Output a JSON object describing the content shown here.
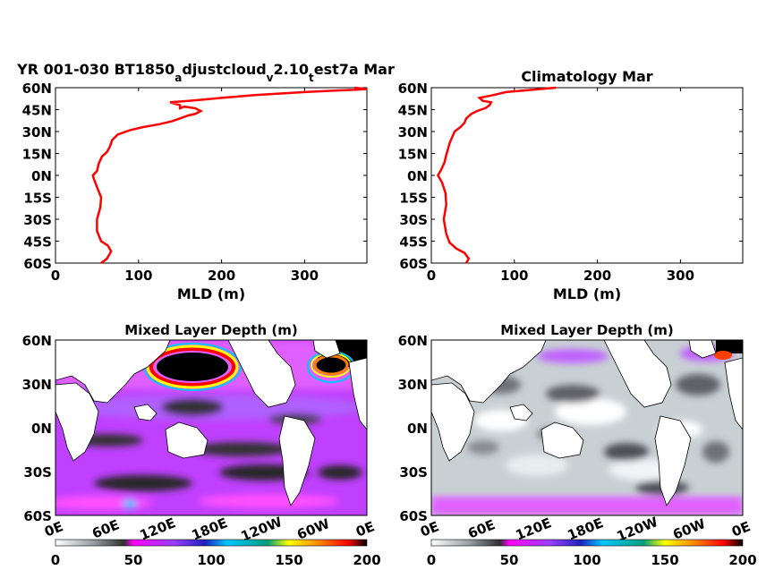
{
  "chart_data": [
    {
      "type": "line",
      "title": "YR 001-030 BT1850",
      "title_parts": [
        "YR 001-030 BT1850",
        "a",
        "djustcloud",
        "v",
        "2.10",
        "t",
        "est7a Mar"
      ],
      "xlabel": "MLD (m)",
      "ylabel": "",
      "xlim": [
        0,
        375
      ],
      "ylim": [
        -60,
        60
      ],
      "xticks": [
        "0",
        "100",
        "200",
        "300"
      ],
      "yticks": [
        "60S",
        "45S",
        "30S",
        "15S",
        "0N",
        "15N",
        "30N",
        "45N",
        "60N"
      ],
      "grid": false,
      "series": [
        {
          "color": "#ff0000",
          "x": [
            55,
            62,
            67,
            63,
            55,
            50,
            50,
            54,
            55,
            50,
            46,
            45,
            50,
            52,
            56,
            62,
            65,
            67,
            68,
            75,
            90,
            105,
            125,
            140,
            150,
            160,
            168,
            175,
            168,
            155,
            150,
            150,
            138,
            160,
            180,
            200,
            240,
            300,
            375,
            360
          ],
          "y": [
            -60,
            -57,
            -52,
            -48,
            -45,
            -38,
            -30,
            -22,
            -15,
            -8,
            -2,
            0,
            3,
            8,
            13,
            16,
            19,
            22,
            24,
            28,
            31,
            33,
            35,
            37,
            39,
            41,
            42,
            44,
            46,
            47,
            46,
            48,
            50,
            51,
            52,
            53,
            55,
            57,
            59,
            60
          ]
        }
      ]
    },
    {
      "type": "line",
      "title": "Climatology Mar",
      "xlabel": "MLD (m)",
      "ylabel": "",
      "xlim": [
        0,
        375
      ],
      "ylim": [
        -60,
        60
      ],
      "xticks": [
        "0",
        "100",
        "200",
        "300"
      ],
      "yticks": [
        "60S",
        "45S",
        "30S",
        "15S",
        "0N",
        "15N",
        "30N",
        "45N",
        "60N"
      ],
      "grid": false,
      "series": [
        {
          "color": "#ff0000",
          "x": [
            42,
            45,
            40,
            30,
            22,
            18,
            15,
            18,
            17,
            13,
            9,
            8,
            12,
            16,
            18,
            20,
            22,
            25,
            28,
            35,
            40,
            42,
            48,
            55,
            65,
            70,
            72,
            62,
            58,
            75,
            90,
            110,
            150
          ],
          "y": [
            -60,
            -57,
            -53,
            -50,
            -46,
            -40,
            -30,
            -20,
            -12,
            -5,
            -1,
            0,
            4,
            9,
            14,
            18,
            22,
            26,
            30,
            33,
            36,
            39,
            42,
            44,
            46,
            48,
            50,
            51,
            53,
            55,
            57,
            58,
            60
          ]
        }
      ]
    },
    {
      "type": "heatmap",
      "title": "Mixed Layer Depth (m)",
      "yticks": [
        "60N",
        "30N",
        "0N",
        "30S",
        "60S"
      ],
      "xticks": [
        "0E",
        "60E",
        "120E",
        "180E",
        "120W",
        "60W",
        "0E"
      ],
      "colorbar_ticks": [
        "0",
        "50",
        "100",
        "150",
        "200"
      ],
      "colorbar_range": [
        0,
        200
      ]
    },
    {
      "type": "heatmap",
      "title": "Mixed Layer Depth (m)",
      "yticks": [
        "60N",
        "30N",
        "0N",
        "30S",
        "60S"
      ],
      "xticks": [
        "0E",
        "60E",
        "120E",
        "180E",
        "120W",
        "60W",
        "0E"
      ],
      "colorbar_ticks": [
        "0",
        "50",
        "100",
        "150",
        "200"
      ],
      "colorbar_range": [
        0,
        200
      ]
    }
  ],
  "colors": {
    "line": "#ff0000",
    "axis": "#000000",
    "colormap": [
      "#ffffff",
      "#202020",
      "#ff00ff",
      "#1010a0",
      "#00e0ff",
      "#00a070",
      "#ffff00",
      "#ff8000",
      "#ff0000",
      "#000000"
    ]
  }
}
